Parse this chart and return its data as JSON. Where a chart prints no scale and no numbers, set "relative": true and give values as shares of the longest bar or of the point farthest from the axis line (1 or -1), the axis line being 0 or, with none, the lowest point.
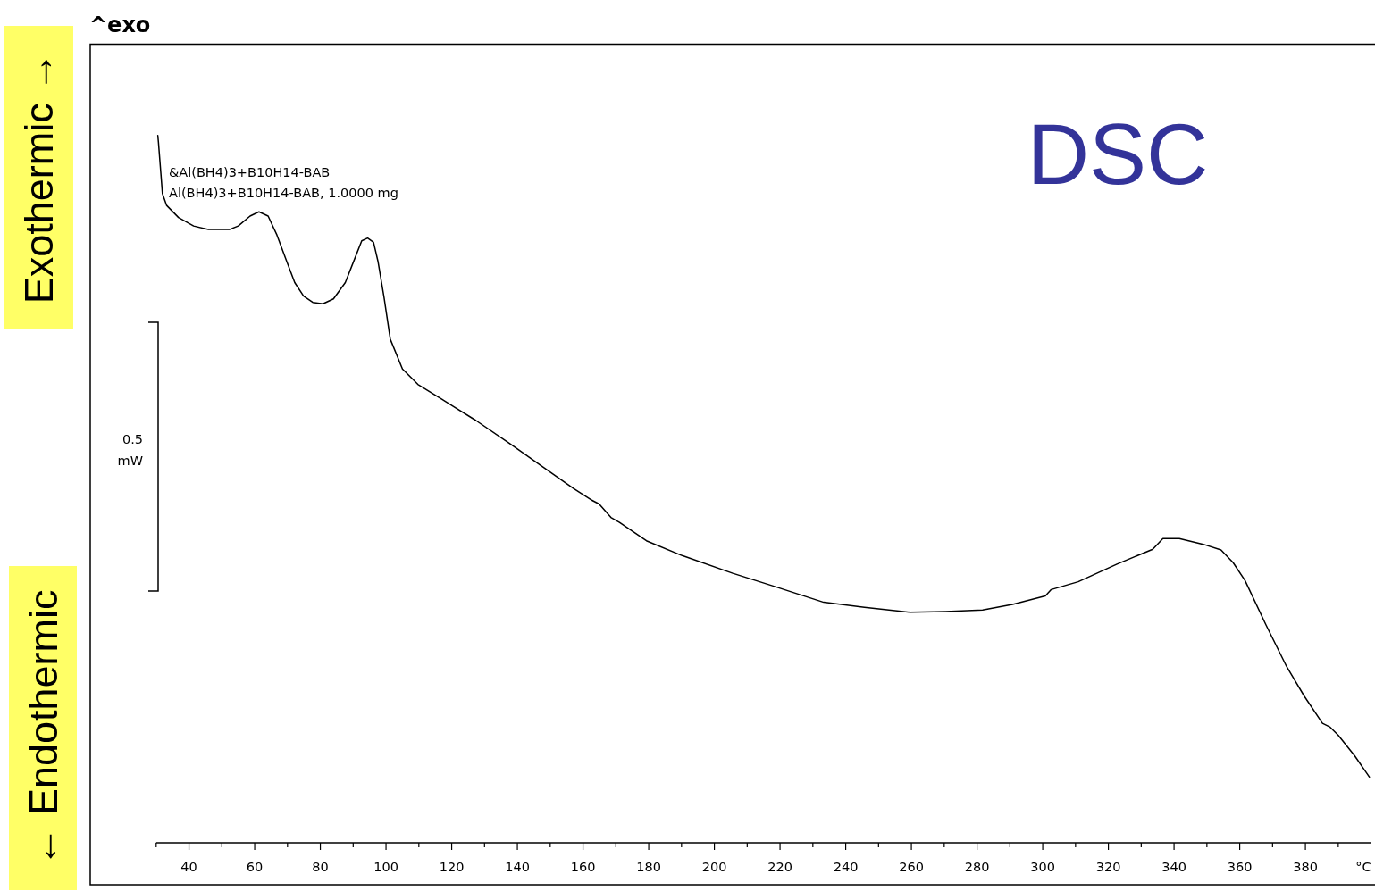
{
  "chart_data": {
    "type": "line",
    "title": "DSC",
    "xlabel": "°C",
    "annotations": [
      "^exo",
      "Exothermic →",
      "← Endothermic",
      "&Al(BH4)3+B10H14-BAB",
      "Al(BH4)3+B10H14-BAB, 1.0000 mg",
      "0.5",
      "mW"
    ],
    "relative": true,
    "xlim": [
      30,
      400
    ],
    "xticks": [
      {
        "value": 30,
        "label": null
      },
      40,
      {
        "value": 50,
        "label": null
      },
      60,
      {
        "value": 70,
        "label": null
      },
      80,
      {
        "value": 90,
        "label": null
      },
      100,
      {
        "value": 110,
        "label": null
      },
      120,
      {
        "value": 130,
        "label": null
      },
      140,
      {
        "value": 150,
        "label": null
      },
      160,
      {
        "value": 170,
        "label": null
      },
      180,
      {
        "value": 190,
        "label": null
      },
      200,
      {
        "value": 210,
        "label": null
      },
      220,
      {
        "value": 230,
        "label": null
      },
      240,
      {
        "value": 250,
        "label": null
      },
      260,
      {
        "value": 270,
        "label": null
      },
      280,
      {
        "value": 290,
        "label": null
      },
      300,
      {
        "value": 310,
        "label": null
      },
      320,
      {
        "value": 330,
        "label": null
      },
      340,
      {
        "value": 350,
        "label": null
      },
      360,
      {
        "value": 370,
        "label": null
      },
      380,
      {
        "value": 390,
        "label": null
      }
    ],
    "x": [
      30.5,
      30.7,
      31.9,
      33.2,
      36.8,
      41.4,
      45.9,
      52.3,
      55.0,
      58.6,
      61.3,
      64.1,
      66.8,
      69.5,
      72.2,
      74.9,
      77.7,
      80.8,
      84.0,
      87.6,
      90.4,
      92.6,
      94.4,
      96.2,
      97.6,
      99.4,
      101.3,
      105.0,
      109.7,
      117.0,
      127.4,
      137.8,
      148.2,
      157.1,
      162.4,
      164.9,
      168.5,
      171.1,
      179.3,
      190.2,
      205.6,
      217.9,
      233.3,
      245.7,
      259.6,
      270.4,
      281.7,
      290.8,
      300.8,
      302.6,
      310.8,
      322.6,
      333.5,
      336.6,
      341.6,
      348.9,
      354.3,
      358.0,
      361.6,
      368.0,
      374.3,
      379.7,
      385.2,
      387.4,
      390.0,
      395.0,
      399.5
    ],
    "series": [
      {
        "color": "#000000",
        "values": [
          1.0,
          0.99,
          0.918,
          0.901,
          0.884,
          0.872,
          0.867,
          0.867,
          0.872,
          0.886,
          0.892,
          0.886,
          0.859,
          0.825,
          0.792,
          0.773,
          0.764,
          0.762,
          0.769,
          0.792,
          0.825,
          0.851,
          0.855,
          0.849,
          0.821,
          0.771,
          0.712,
          0.67,
          0.648,
          0.627,
          0.597,
          0.564,
          0.53,
          0.501,
          0.485,
          0.479,
          0.46,
          0.453,
          0.427,
          0.406,
          0.381,
          0.363,
          0.34,
          0.333,
          0.326,
          0.327,
          0.329,
          0.337,
          0.349,
          0.358,
          0.369,
          0.394,
          0.415,
          0.43,
          0.43,
          0.422,
          0.414,
          0.396,
          0.371,
          0.308,
          0.249,
          0.207,
          0.169,
          0.164,
          0.152,
          0.123,
          0.093
        ]
      }
    ]
  }
}
